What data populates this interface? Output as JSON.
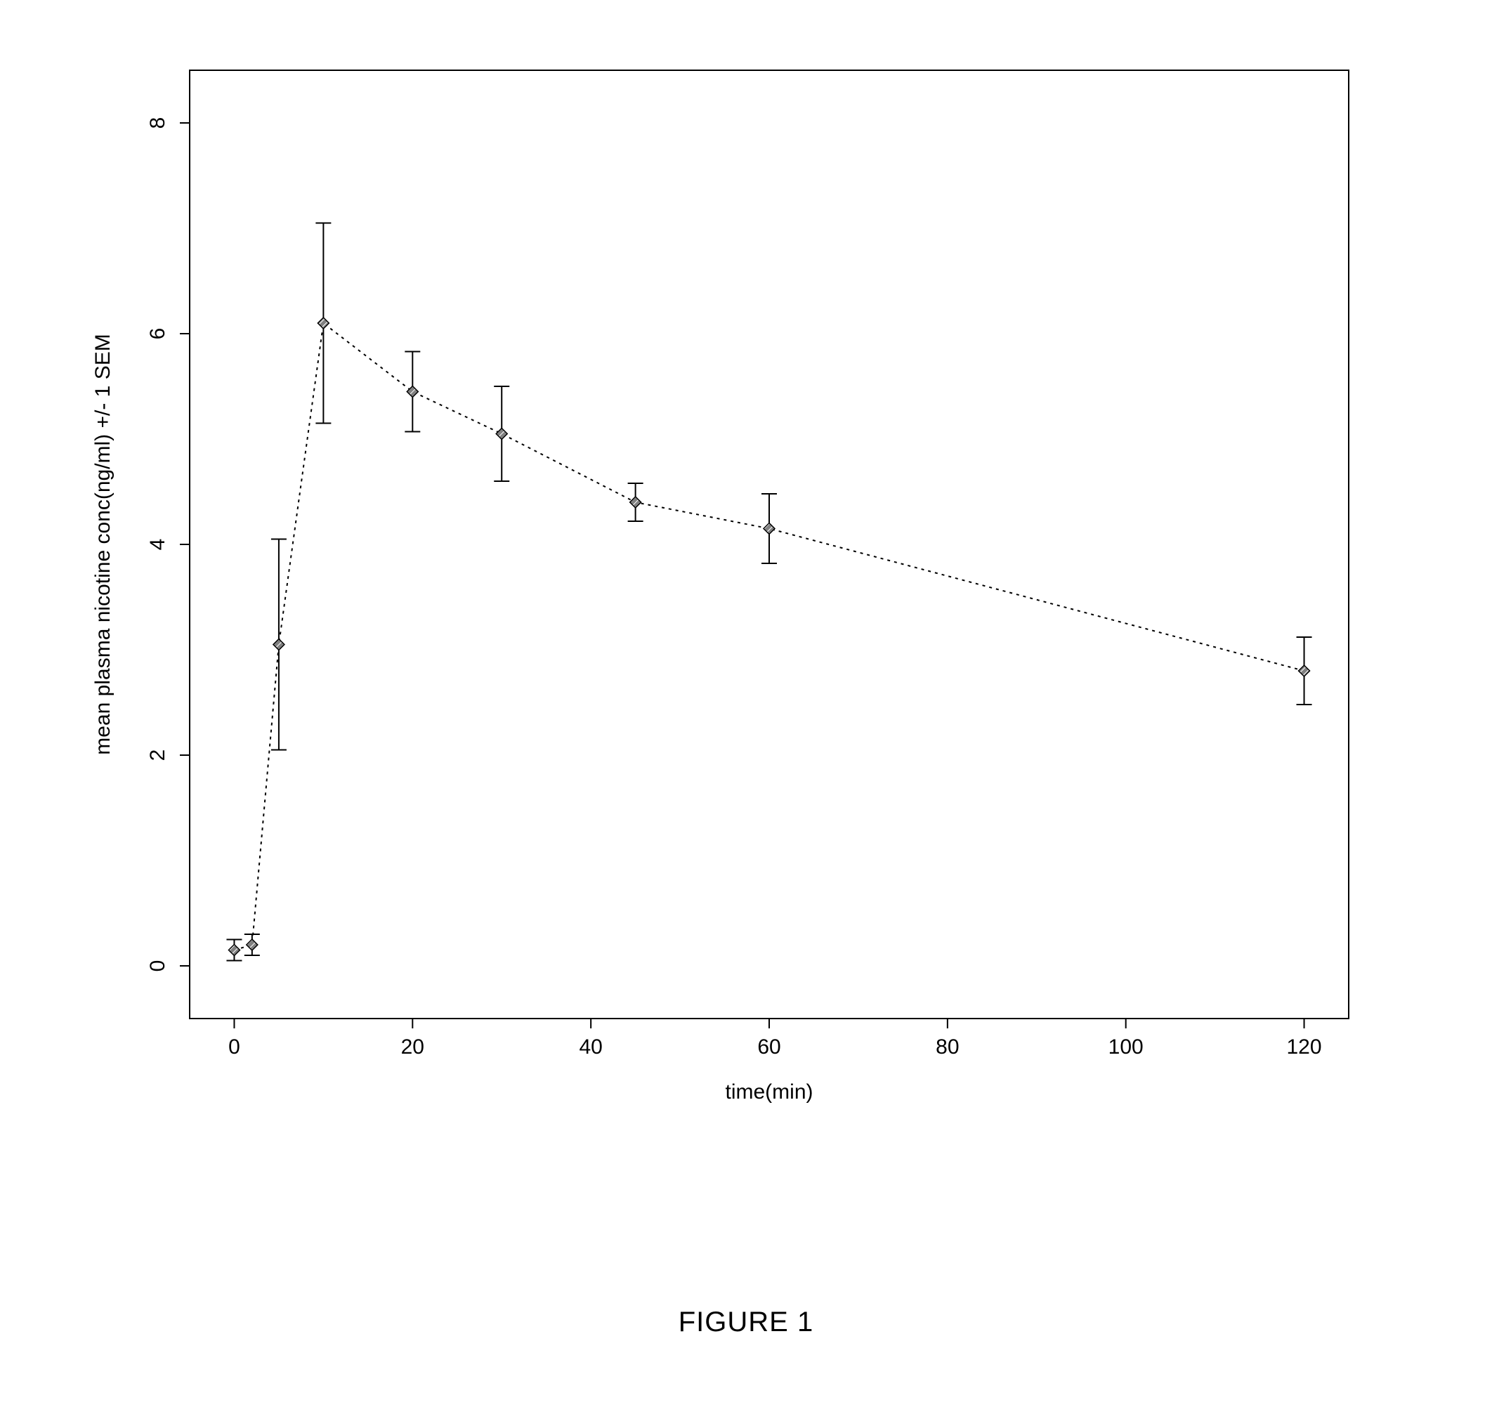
{
  "chart": {
    "type": "line-errorbar",
    "xlabel": "time(min)",
    "ylabel": "mean plasma nicotine conc(ng/ml) +/- 1 SEM",
    "label_fontsize": 30,
    "tick_fontsize": 30,
    "background_color": "#ffffff",
    "axis_color": "#000000",
    "line_color": "#000000",
    "marker_fill": "#808080",
    "marker_stroke": "#000000",
    "marker_size": 16,
    "line_width": 2,
    "dash_pattern": "4,6",
    "errorbar_width": 2,
    "errorbar_cap": 22,
    "tick_length": 14,
    "xticks": [
      0,
      20,
      40,
      60,
      80,
      100,
      120
    ],
    "yticks": [
      0,
      2,
      4,
      6,
      8
    ],
    "xlim": [
      -5,
      125
    ],
    "ylim": [
      -0.5,
      8.5
    ],
    "plot_box_width": 1650,
    "plot_box_height": 1350,
    "data": {
      "x": [
        0,
        2,
        5,
        10,
        20,
        30,
        45,
        60,
        120
      ],
      "y": [
        0.15,
        0.2,
        3.05,
        6.1,
        5.45,
        5.05,
        4.4,
        4.15,
        2.8
      ],
      "err": [
        0.1,
        0.1,
        1.0,
        0.95,
        0.38,
        0.45,
        0.18,
        0.33,
        0.32
      ]
    }
  },
  "caption": {
    "text": "FIGURE 1",
    "fontsize": 40,
    "color": "#000000"
  }
}
